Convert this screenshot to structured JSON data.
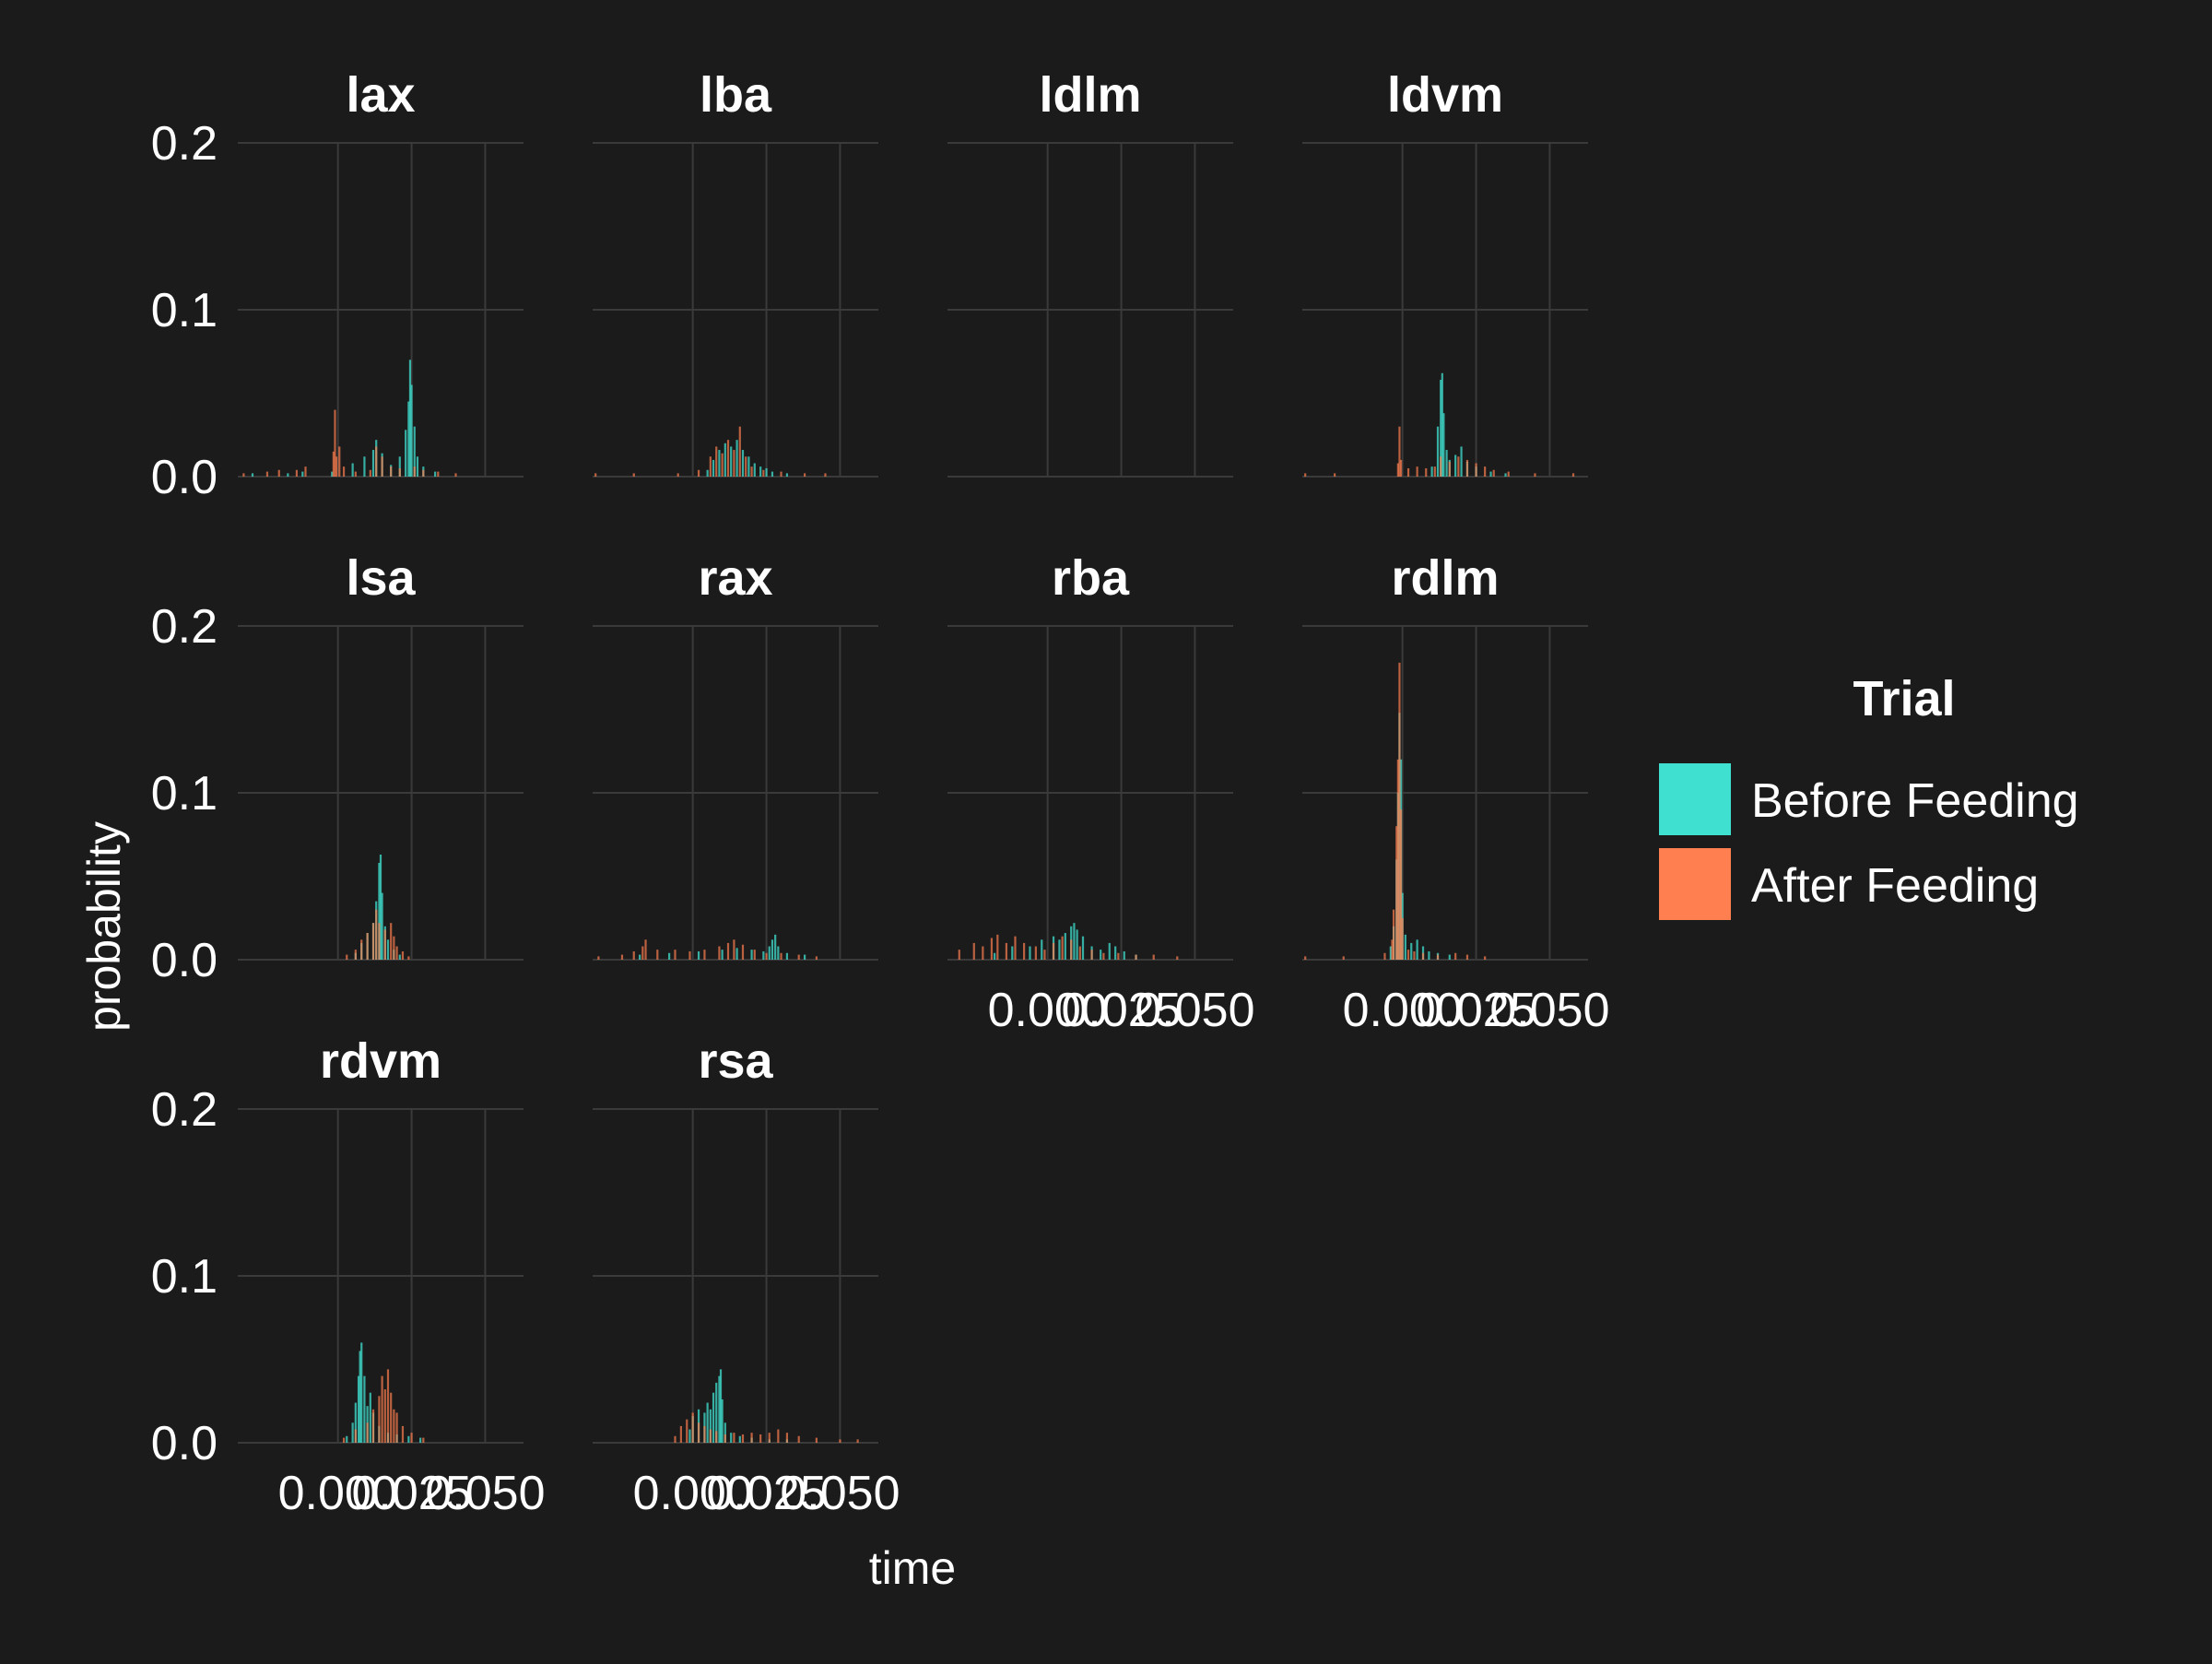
{
  "colors": {
    "background": "#1b1b1b",
    "grid": "#3a3a3a",
    "text": "#ffffff",
    "before": "#40e0d0",
    "after": "#ff7f50"
  },
  "chart_data": {
    "type": "histogram",
    "layout": "facet_wrap",
    "facet_columns": 4,
    "xlabel": "time",
    "ylabel": "probability",
    "xlim": [
      -0.034,
      0.063
    ],
    "ylim": [
      0,
      0.2
    ],
    "x_ticks": [
      0.0,
      0.025,
      0.05
    ],
    "x_tick_labels": [
      "0.000",
      "0.025",
      "0.050"
    ],
    "y_ticks": [
      0.0,
      0.1,
      0.2
    ],
    "y_tick_labels": [
      "0.0",
      "0.1",
      "0.2"
    ],
    "grid": true,
    "bin_width": 0.00025,
    "legend": {
      "title": "Trial",
      "position": "right",
      "entries": [
        "Before Feeding",
        "After Feeding"
      ]
    },
    "facets": [
      {
        "name": "lax",
        "before": [
          [
            -0.029,
            0.002
          ],
          [
            -0.017,
            0.002
          ],
          [
            -0.012,
            0.003
          ],
          [
            -0.002,
            0.003
          ],
          [
            0.005,
            0.008
          ],
          [
            0.009,
            0.012
          ],
          [
            0.012,
            0.016
          ],
          [
            0.013,
            0.022
          ],
          [
            0.015,
            0.014
          ],
          [
            0.018,
            0.007
          ],
          [
            0.021,
            0.012
          ],
          [
            0.023,
            0.028
          ],
          [
            0.024,
            0.045
          ],
          [
            0.0245,
            0.07
          ],
          [
            0.025,
            0.055
          ],
          [
            0.026,
            0.03
          ],
          [
            0.027,
            0.012
          ],
          [
            0.029,
            0.006
          ],
          [
            0.033,
            0.003
          ]
        ],
        "after": [
          [
            -0.032,
            0.002
          ],
          [
            -0.024,
            0.003
          ],
          [
            -0.02,
            0.004
          ],
          [
            -0.014,
            0.004
          ],
          [
            -0.011,
            0.006
          ],
          [
            -0.0015,
            0.015
          ],
          [
            -0.001,
            0.04
          ],
          [
            -0.0005,
            0.012
          ],
          [
            0.0005,
            0.018
          ],
          [
            0.002,
            0.006
          ],
          [
            0.006,
            0.003
          ],
          [
            0.011,
            0.004
          ],
          [
            0.013,
            0.018
          ],
          [
            0.015,
            0.012
          ],
          [
            0.018,
            0.006
          ],
          [
            0.021,
            0.005
          ],
          [
            0.026,
            0.006
          ],
          [
            0.029,
            0.004
          ],
          [
            0.034,
            0.003
          ],
          [
            0.04,
            0.002
          ]
        ]
      },
      {
        "name": "lba",
        "before": [
          [
            0.005,
            0.004
          ],
          [
            0.007,
            0.01
          ],
          [
            0.009,
            0.016
          ],
          [
            0.011,
            0.02
          ],
          [
            0.013,
            0.018
          ],
          [
            0.015,
            0.022
          ],
          [
            0.017,
            0.016
          ],
          [
            0.019,
            0.012
          ],
          [
            0.021,
            0.008
          ],
          [
            0.023,
            0.006
          ],
          [
            0.025,
            0.005
          ],
          [
            0.027,
            0.003
          ],
          [
            0.032,
            0.002
          ]
        ],
        "after": [
          [
            -0.033,
            0.002
          ],
          [
            -0.02,
            0.002
          ],
          [
            -0.005,
            0.002
          ],
          [
            0.002,
            0.004
          ],
          [
            0.006,
            0.012
          ],
          [
            0.008,
            0.018
          ],
          [
            0.01,
            0.014
          ],
          [
            0.012,
            0.022
          ],
          [
            0.014,
            0.016
          ],
          [
            0.016,
            0.03
          ],
          [
            0.018,
            0.012
          ],
          [
            0.02,
            0.006
          ],
          [
            0.024,
            0.004
          ],
          [
            0.03,
            0.003
          ],
          [
            0.038,
            0.002
          ],
          [
            0.045,
            0.002
          ]
        ]
      },
      {
        "name": "ldlm",
        "before": [],
        "after": []
      },
      {
        "name": "ldvm",
        "before": [
          [
            0.01,
            0.006
          ],
          [
            0.012,
            0.03
          ],
          [
            0.013,
            0.058
          ],
          [
            0.0135,
            0.062
          ],
          [
            0.014,
            0.038
          ],
          [
            0.015,
            0.016
          ],
          [
            0.016,
            0.01
          ],
          [
            0.018,
            0.013
          ],
          [
            0.02,
            0.018
          ],
          [
            0.022,
            0.009
          ],
          [
            0.025,
            0.006
          ],
          [
            0.03,
            0.003
          ],
          [
            0.035,
            0.002
          ]
        ],
        "after": [
          [
            -0.033,
            0.002
          ],
          [
            -0.023,
            0.002
          ],
          [
            -0.0015,
            0.008
          ],
          [
            -0.001,
            0.03
          ],
          [
            -0.0005,
            0.01
          ],
          [
            0.002,
            0.005
          ],
          [
            0.005,
            0.006
          ],
          [
            0.008,
            0.005
          ],
          [
            0.011,
            0.006
          ],
          [
            0.013,
            0.012
          ],
          [
            0.016,
            0.009
          ],
          [
            0.019,
            0.012
          ],
          [
            0.022,
            0.01
          ],
          [
            0.025,
            0.008
          ],
          [
            0.028,
            0.006
          ],
          [
            0.031,
            0.004
          ],
          [
            0.036,
            0.003
          ],
          [
            0.045,
            0.002
          ],
          [
            0.058,
            0.002
          ]
        ]
      },
      {
        "name": "lsa",
        "before": [
          [
            0.006,
            0.004
          ],
          [
            0.008,
            0.01
          ],
          [
            0.01,
            0.016
          ],
          [
            0.012,
            0.022
          ],
          [
            0.013,
            0.035
          ],
          [
            0.014,
            0.058
          ],
          [
            0.0145,
            0.063
          ],
          [
            0.015,
            0.04
          ],
          [
            0.016,
            0.02
          ],
          [
            0.017,
            0.012
          ],
          [
            0.019,
            0.006
          ],
          [
            0.021,
            0.003
          ]
        ],
        "after": [
          [
            0.003,
            0.003
          ],
          [
            0.006,
            0.006
          ],
          [
            0.008,
            0.012
          ],
          [
            0.01,
            0.016
          ],
          [
            0.012,
            0.022
          ],
          [
            0.013,
            0.03
          ],
          [
            0.014,
            0.022
          ],
          [
            0.016,
            0.018
          ],
          [
            0.018,
            0.022
          ],
          [
            0.019,
            0.014
          ],
          [
            0.02,
            0.008
          ],
          [
            0.022,
            0.005
          ],
          [
            0.024,
            0.002
          ]
        ]
      },
      {
        "name": "rax",
        "before": [
          [
            -0.018,
            0.003
          ],
          [
            -0.008,
            0.004
          ],
          [
            0.002,
            0.005
          ],
          [
            0.01,
            0.006
          ],
          [
            0.015,
            0.007
          ],
          [
            0.02,
            0.006
          ],
          [
            0.024,
            0.005
          ],
          [
            0.026,
            0.008
          ],
          [
            0.027,
            0.012
          ],
          [
            0.028,
            0.015
          ],
          [
            0.029,
            0.008
          ],
          [
            0.032,
            0.004
          ],
          [
            0.038,
            0.003
          ]
        ],
        "after": [
          [
            -0.032,
            0.002
          ],
          [
            -0.024,
            0.003
          ],
          [
            -0.02,
            0.005
          ],
          [
            -0.017,
            0.008
          ],
          [
            -0.016,
            0.012
          ],
          [
            -0.012,
            0.006
          ],
          [
            -0.006,
            0.006
          ],
          [
            -0.001,
            0.005
          ],
          [
            0.004,
            0.006
          ],
          [
            0.009,
            0.008
          ],
          [
            0.012,
            0.01
          ],
          [
            0.014,
            0.012
          ],
          [
            0.017,
            0.009
          ],
          [
            0.021,
            0.006
          ],
          [
            0.025,
            0.004
          ],
          [
            0.03,
            0.004
          ],
          [
            0.036,
            0.003
          ],
          [
            0.042,
            0.002
          ]
        ]
      },
      {
        "name": "rba",
        "before": [
          [
            -0.018,
            0.004
          ],
          [
            -0.012,
            0.008
          ],
          [
            -0.006,
            0.008
          ],
          [
            -0.002,
            0.012
          ],
          [
            0.002,
            0.014
          ],
          [
            0.004,
            0.012
          ],
          [
            0.006,
            0.016
          ],
          [
            0.008,
            0.02
          ],
          [
            0.009,
            0.022
          ],
          [
            0.01,
            0.018
          ],
          [
            0.012,
            0.014
          ],
          [
            0.015,
            0.008
          ],
          [
            0.018,
            0.006
          ],
          [
            0.021,
            0.01
          ],
          [
            0.023,
            0.008
          ],
          [
            0.026,
            0.005
          ],
          [
            0.03,
            0.003
          ]
        ],
        "after": [
          [
            -0.03,
            0.006
          ],
          [
            -0.025,
            0.01
          ],
          [
            -0.022,
            0.008
          ],
          [
            -0.019,
            0.013
          ],
          [
            -0.017,
            0.015
          ],
          [
            -0.014,
            0.01
          ],
          [
            -0.011,
            0.014
          ],
          [
            -0.008,
            0.01
          ],
          [
            -0.004,
            0.008
          ],
          [
            -0.001,
            0.006
          ],
          [
            0.002,
            0.01
          ],
          [
            0.005,
            0.014
          ],
          [
            0.008,
            0.012
          ],
          [
            0.011,
            0.008
          ],
          [
            0.015,
            0.006
          ],
          [
            0.019,
            0.004
          ],
          [
            0.024,
            0.004
          ],
          [
            0.03,
            0.003
          ],
          [
            0.036,
            0.003
          ],
          [
            0.044,
            0.002
          ]
        ]
      },
      {
        "name": "rdlm",
        "before": [
          [
            -0.004,
            0.008
          ],
          [
            -0.003,
            0.02
          ],
          [
            -0.002,
            0.06
          ],
          [
            -0.0015,
            0.1
          ],
          [
            -0.001,
            0.148
          ],
          [
            -0.0005,
            0.12
          ],
          [
            0.0,
            0.04
          ],
          [
            0.001,
            0.015
          ],
          [
            0.003,
            0.01
          ],
          [
            0.005,
            0.012
          ],
          [
            0.007,
            0.008
          ],
          [
            0.009,
            0.005
          ],
          [
            0.012,
            0.004
          ],
          [
            0.016,
            0.003
          ]
        ],
        "after": [
          [
            -0.033,
            0.002
          ],
          [
            -0.02,
            0.002
          ],
          [
            -0.006,
            0.004
          ],
          [
            -0.0035,
            0.012
          ],
          [
            -0.003,
            0.03
          ],
          [
            -0.002,
            0.08
          ],
          [
            -0.0015,
            0.12
          ],
          [
            -0.001,
            0.178
          ],
          [
            -0.0005,
            0.09
          ],
          [
            0.0,
            0.025
          ],
          [
            0.002,
            0.006
          ],
          [
            0.004,
            0.005
          ],
          [
            0.007,
            0.004
          ],
          [
            0.012,
            0.003
          ],
          [
            0.018,
            0.004
          ],
          [
            0.022,
            0.003
          ],
          [
            0.028,
            0.002
          ]
        ]
      },
      {
        "name": "rdvm",
        "before": [
          [
            0.003,
            0.004
          ],
          [
            0.005,
            0.012
          ],
          [
            0.006,
            0.024
          ],
          [
            0.007,
            0.04
          ],
          [
            0.0075,
            0.055
          ],
          [
            0.008,
            0.06
          ],
          [
            0.009,
            0.04
          ],
          [
            0.01,
            0.022
          ],
          [
            0.011,
            0.03
          ],
          [
            0.012,
            0.018
          ],
          [
            0.014,
            0.01
          ],
          [
            0.017,
            0.006
          ],
          [
            0.02,
            0.005
          ],
          [
            0.024,
            0.004
          ],
          [
            0.028,
            0.003
          ]
        ],
        "after": [
          [
            0.002,
            0.003
          ],
          [
            0.006,
            0.008
          ],
          [
            0.01,
            0.012
          ],
          [
            0.012,
            0.02
          ],
          [
            0.014,
            0.028
          ],
          [
            0.015,
            0.04
          ],
          [
            0.016,
            0.032
          ],
          [
            0.017,
            0.044
          ],
          [
            0.018,
            0.03
          ],
          [
            0.019,
            0.02
          ],
          [
            0.02,
            0.018
          ],
          [
            0.022,
            0.01
          ],
          [
            0.025,
            0.006
          ],
          [
            0.029,
            0.003
          ]
        ]
      },
      {
        "name": "rsa",
        "before": [
          [
            -0.001,
            0.008
          ],
          [
            0.0,
            0.016
          ],
          [
            0.002,
            0.02
          ],
          [
            0.004,
            0.018
          ],
          [
            0.005,
            0.024
          ],
          [
            0.006,
            0.02
          ],
          [
            0.007,
            0.03
          ],
          [
            0.008,
            0.036
          ],
          [
            0.009,
            0.04
          ],
          [
            0.0095,
            0.044
          ],
          [
            0.01,
            0.026
          ],
          [
            0.011,
            0.012
          ],
          [
            0.013,
            0.006
          ],
          [
            0.016,
            0.004
          ],
          [
            0.02,
            0.003
          ],
          [
            0.026,
            0.002
          ],
          [
            0.032,
            0.002
          ]
        ],
        "after": [
          [
            -0.006,
            0.004
          ],
          [
            -0.004,
            0.01
          ],
          [
            -0.002,
            0.014
          ],
          [
            0.0,
            0.018
          ],
          [
            0.002,
            0.012
          ],
          [
            0.004,
            0.01
          ],
          [
            0.006,
            0.008
          ],
          [
            0.008,
            0.007
          ],
          [
            0.011,
            0.005
          ],
          [
            0.014,
            0.006
          ],
          [
            0.017,
            0.005
          ],
          [
            0.02,
            0.006
          ],
          [
            0.023,
            0.005
          ],
          [
            0.026,
            0.006
          ],
          [
            0.029,
            0.008
          ],
          [
            0.032,
            0.006
          ],
          [
            0.036,
            0.004
          ],
          [
            0.042,
            0.003
          ],
          [
            0.05,
            0.002
          ],
          [
            0.056,
            0.002
          ]
        ]
      }
    ]
  }
}
